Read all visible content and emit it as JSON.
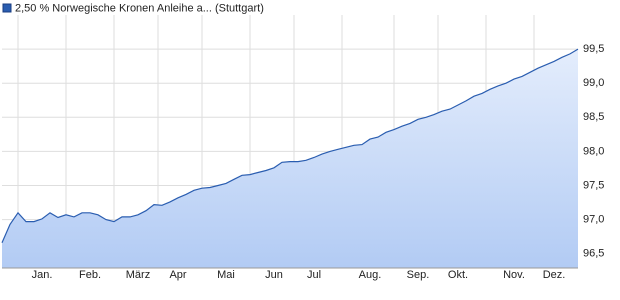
{
  "chart_data": {
    "type": "area",
    "categories": [
      null,
      null,
      null,
      null,
      null,
      "Jan.",
      null,
      null,
      null,
      null,
      null,
      "Feb.",
      null,
      null,
      null,
      null,
      null,
      "März",
      null,
      null,
      null,
      null,
      "Apr",
      null,
      null,
      null,
      null,
      null,
      "Mai",
      null,
      null,
      null,
      null,
      null,
      "Jun",
      null,
      null,
      null,
      null,
      "Jul",
      null,
      null,
      null,
      null,
      null,
      null,
      "Aug.",
      null,
      null,
      null,
      null,
      null,
      "Sep.",
      null,
      null,
      null,
      null,
      "Okt.",
      null,
      null,
      null,
      null,
      null,
      null,
      "Nov.",
      null,
      null,
      null,
      null,
      "Dez.",
      null,
      null,
      null
    ],
    "series": [
      {
        "name": "2,50 % Norwegische Kronen Anleihe a... (Stuttgart)",
        "color": "#2a5db0",
        "values": [
          96.66,
          96.93,
          97.1,
          96.97,
          96.97,
          97.01,
          97.1,
          97.03,
          97.07,
          97.04,
          97.1,
          97.1,
          97.07,
          97.0,
          96.97,
          97.04,
          97.04,
          97.07,
          97.13,
          97.22,
          97.21,
          97.26,
          97.32,
          97.37,
          97.43,
          97.46,
          97.47,
          97.5,
          97.53,
          97.59,
          97.65,
          97.66,
          97.69,
          97.72,
          97.76,
          97.84,
          97.85,
          97.85,
          97.87,
          97.91,
          97.96,
          98.0,
          98.03,
          98.06,
          98.09,
          98.1,
          98.18,
          98.21,
          98.28,
          98.32,
          98.37,
          98.41,
          98.47,
          98.5,
          98.54,
          98.59,
          98.62,
          98.68,
          98.74,
          98.81,
          98.85,
          98.91,
          98.96,
          99.0,
          99.06,
          99.1,
          99.16,
          99.22,
          99.27,
          99.32,
          99.38,
          99.43,
          99.5
        ]
      }
    ],
    "ylim": [
      96.29,
      100.0
    ],
    "yticks": [
      {
        "value": 96.5,
        "label": "96,5"
      },
      {
        "value": 97.0,
        "label": "97,0"
      },
      {
        "value": 97.5,
        "label": "97,5"
      },
      {
        "value": 98.0,
        "label": "98,0"
      },
      {
        "value": 98.5,
        "label": "98,5"
      },
      {
        "value": 99.0,
        "label": "99,0"
      },
      {
        "value": 99.5,
        "label": "99,5"
      }
    ],
    "grid": true
  }
}
